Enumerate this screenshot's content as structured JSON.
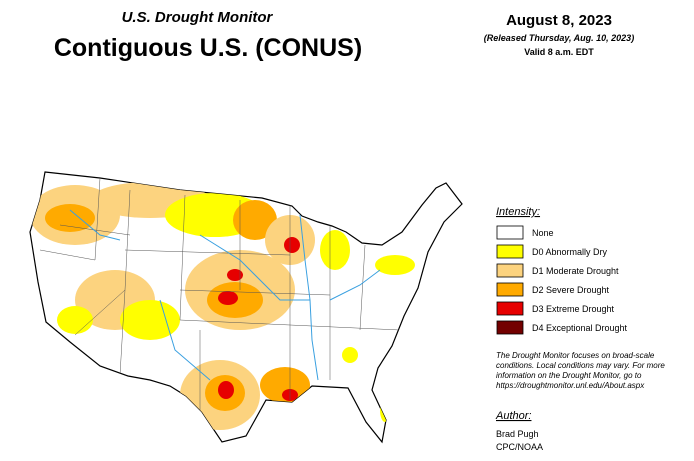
{
  "header": {
    "title": "U.S. Drought Monitor",
    "subtitle": "Contiguous U.S. (CONUS)",
    "date": "August 8, 2023",
    "released": "(Released Thursday, Aug. 10, 2023)",
    "valid": "Valid 8 a.m. EDT"
  },
  "legend": {
    "title": "Intensity:",
    "items": [
      {
        "label": "None",
        "color": "#ffffff"
      },
      {
        "label": "D0 Abnormally Dry",
        "color": "#ffff00"
      },
      {
        "label": "D1 Moderate Drought",
        "color": "#fcd37f"
      },
      {
        "label": "D2 Severe Drought",
        "color": "#ffaa00"
      },
      {
        "label": "D3 Extreme Drought",
        "color": "#e60000"
      },
      {
        "label": "D4 Exceptional Drought",
        "color": "#730000"
      }
    ]
  },
  "note": {
    "lines": [
      "The Drought Monitor focuses on broad-scale",
      "conditions. Local conditions may vary. For more",
      "information on the Drought Monitor, go to",
      "https://droughtmonitor.unl.edu/About.aspx"
    ]
  },
  "author": {
    "heading": "Author:",
    "names": [
      "Brad Pugh",
      "CPC/NOAA"
    ]
  }
}
